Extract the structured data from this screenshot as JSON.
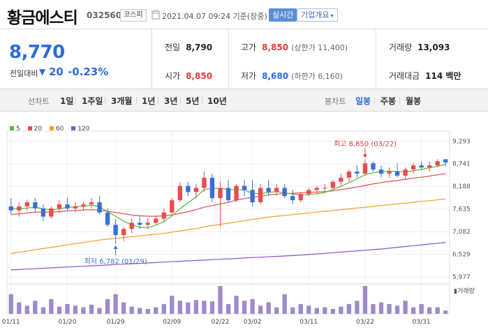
{
  "header": {
    "name": "황금에스티",
    "code": "032560",
    "market": "코스피",
    "date": "2021.04.07 09:24 기준(장중)",
    "realtime_label": "실시간",
    "company_label": "기업개요"
  },
  "price": {
    "current": "8,770",
    "change_label": "전일대비",
    "change_value": "20",
    "change_rate": "-0.23%"
  },
  "stats": {
    "prev_close_label": "전일",
    "prev_close": "8,790",
    "high_label": "고가",
    "high": "8,850",
    "upper_limit": "(상한가 11,400)",
    "volume_label": "거래량",
    "volume": "13,093",
    "open_label": "시가",
    "open": "8,850",
    "low_label": "저가",
    "low": "8,680",
    "lower_limit": "(하한가 6,160)",
    "amount_label": "거래대금",
    "amount": "114 백만"
  },
  "period": {
    "label": "선차트",
    "items": [
      "1일",
      "1주일",
      "3개월",
      "1년",
      "3년",
      "5년",
      "10년"
    ],
    "candle_label": "봉차트",
    "candle_items": [
      "일봉",
      "주봉",
      "월봉"
    ],
    "candle_active": "일봉"
  },
  "chart_data": {
    "type": "candlestick",
    "legend": [
      {
        "name": "5",
        "color": "#54b63d"
      },
      {
        "name": "20",
        "color": "#e84c4c"
      },
      {
        "name": "60",
        "color": "#f39c2a"
      },
      {
        "name": "120",
        "color": "#8c52c8"
      }
    ],
    "y_ticks": [
      5977,
      6529,
      7082,
      7635,
      8188,
      8741,
      9293
    ],
    "y_tick_labels": [
      "5,977",
      "6,529",
      "7,082",
      "7,635",
      "8,188",
      "8,741",
      "9,293"
    ],
    "ylim": [
      5860,
      9400
    ],
    "x_ticks": [
      {
        "index": 0,
        "label": "01/11"
      },
      {
        "index": 7,
        "label": "01/20"
      },
      {
        "index": 13,
        "label": "01/29"
      },
      {
        "index": 20,
        "label": "02/09"
      },
      {
        "index": 26,
        "label": "02/22"
      },
      {
        "index": 30,
        "label": "03/02"
      },
      {
        "index": 37,
        "label": "03/11"
      },
      {
        "index": 44,
        "label": "03/22"
      },
      {
        "index": 51,
        "label": "03/31"
      }
    ],
    "ohlc": [
      [
        7700,
        7900,
        7500,
        7600
      ],
      [
        7600,
        7800,
        7450,
        7700
      ],
      [
        7700,
        7850,
        7600,
        7800
      ],
      [
        7800,
        7900,
        7550,
        7650
      ],
      [
        7650,
        7750,
        7350,
        7450
      ],
      [
        7450,
        7700,
        7400,
        7650
      ],
      [
        7650,
        7850,
        7550,
        7750
      ],
      [
        7750,
        7900,
        7600,
        7650
      ],
      [
        7650,
        7800,
        7550,
        7700
      ],
      [
        7700,
        7800,
        7600,
        7750
      ],
      [
        7750,
        7900,
        7650,
        7800
      ],
      [
        7800,
        7950,
        7500,
        7550
      ],
      [
        7550,
        7650,
        7200,
        7250
      ],
      [
        7250,
        7400,
        6782,
        7000
      ],
      [
        7000,
        7200,
        6850,
        7150
      ],
      [
        7150,
        7400,
        7050,
        7300
      ],
      [
        7300,
        7450,
        7150,
        7250
      ],
      [
        7250,
        7400,
        7150,
        7300
      ],
      [
        7300,
        7450,
        7250,
        7400
      ],
      [
        7400,
        7650,
        7350,
        7550
      ],
      [
        7550,
        7900,
        7500,
        7850
      ],
      [
        7850,
        8300,
        7800,
        8200
      ],
      [
        8200,
        8300,
        7950,
        8050
      ],
      [
        8050,
        8250,
        7900,
        8150
      ],
      [
        8150,
        8550,
        8050,
        8400
      ],
      [
        8400,
        8500,
        7800,
        7900
      ],
      [
        7900,
        8300,
        7200,
        8150
      ],
      [
        8150,
        8350,
        7800,
        7850
      ],
      [
        7850,
        8250,
        7800,
        8200
      ],
      [
        8200,
        8350,
        7950,
        8100
      ],
      [
        8100,
        8350,
        7700,
        7800
      ],
      [
        7800,
        8250,
        7750,
        8150
      ],
      [
        8150,
        8350,
        7950,
        8050
      ],
      [
        8050,
        8250,
        7950,
        8150
      ],
      [
        8150,
        8250,
        7900,
        7950
      ],
      [
        7950,
        8100,
        7750,
        7850
      ],
      [
        7850,
        8050,
        7800,
        8000
      ],
      [
        8000,
        8150,
        7950,
        8100
      ],
      [
        8100,
        8200,
        8000,
        8150
      ],
      [
        8150,
        8250,
        8050,
        8150
      ],
      [
        8150,
        8350,
        8100,
        8300
      ],
      [
        8300,
        8500,
        8200,
        8400
      ],
      [
        8400,
        8600,
        8300,
        8550
      ],
      [
        8550,
        8700,
        8400,
        8500
      ],
      [
        8500,
        8850,
        8450,
        8750
      ],
      [
        8750,
        8800,
        8550,
        8600
      ],
      [
        8600,
        8700,
        8400,
        8500
      ],
      [
        8500,
        8650,
        8400,
        8550
      ],
      [
        8550,
        8750,
        8400,
        8450
      ],
      [
        8450,
        8650,
        8350,
        8600
      ],
      [
        8600,
        8750,
        8500,
        8700
      ],
      [
        8700,
        8800,
        8600,
        8650
      ],
      [
        8650,
        8800,
        8550,
        8700
      ],
      [
        8700,
        8850,
        8650,
        8800
      ],
      [
        8850,
        8850,
        8680,
        8770
      ]
    ],
    "ma5": [
      7650,
      7640,
      7660,
      7680,
      7640,
      7610,
      7640,
      7680,
      7690,
      7700,
      7730,
      7690,
      7570,
      7460,
      7340,
      7250,
      7190,
      7180,
      7240,
      7330,
      7470,
      7640,
      7790,
      7930,
      8110,
      8140,
      8140,
      8110,
      8110,
      8100,
      8020,
      8010,
      8040,
      8060,
      8030,
      8000,
      7980,
      7990,
      8010,
      8040,
      8110,
      8190,
      8280,
      8370,
      8470,
      8520,
      8540,
      8560,
      8550,
      8540,
      8570,
      8600,
      8640,
      8680,
      8730
    ],
    "ma20": [
      7500,
      7520,
      7540,
      7560,
      7560,
      7560,
      7570,
      7590,
      7600,
      7610,
      7620,
      7610,
      7580,
      7550,
      7520,
      7490,
      7470,
      7460,
      7460,
      7470,
      7490,
      7530,
      7570,
      7620,
      7680,
      7720,
      7760,
      7800,
      7850,
      7890,
      7920,
      7950,
      7980,
      8000,
      8010,
      8020,
      8030,
      8040,
      8050,
      8060,
      8080,
      8110,
      8140,
      8170,
      8210,
      8250,
      8280,
      8310,
      8330,
      8360,
      8390,
      8410,
      8440,
      8470,
      8500
    ],
    "ma60": [
      6550,
      6580,
      6610,
      6640,
      6670,
      6700,
      6730,
      6760,
      6790,
      6820,
      6850,
      6880,
      6900,
      6920,
      6940,
      6960,
      6980,
      7000,
      7020,
      7040,
      7070,
      7100,
      7130,
      7160,
      7200,
      7230,
      7260,
      7290,
      7320,
      7350,
      7380,
      7410,
      7440,
      7460,
      7480,
      7500,
      7520,
      7540,
      7560,
      7580,
      7600,
      7620,
      7640,
      7660,
      7680,
      7700,
      7720,
      7740,
      7760,
      7780,
      7800,
      7820,
      7840,
      7860,
      7880
    ],
    "ma120": [
      6150,
      6160,
      6170,
      6180,
      6190,
      6200,
      6210,
      6220,
      6230,
      6240,
      6250,
      6260,
      6270,
      6280,
      6290,
      6300,
      6310,
      6320,
      6330,
      6340,
      6350,
      6360,
      6370,
      6380,
      6390,
      6400,
      6410,
      6420,
      6430,
      6440,
      6450,
      6460,
      6470,
      6480,
      6490,
      6500,
      6510,
      6525,
      6540,
      6555,
      6570,
      6585,
      6600,
      6615,
      6630,
      6645,
      6660,
      6680,
      6700,
      6720,
      6740,
      6760,
      6780,
      6800,
      6820
    ],
    "volume": [
      60,
      35,
      25,
      40,
      20,
      45,
      22,
      30,
      25,
      20,
      28,
      18,
      45,
      60,
      35,
      22,
      18,
      15,
      20,
      30,
      55,
      40,
      35,
      42,
      40,
      38,
      85,
      30,
      55,
      40,
      45,
      25,
      35,
      20,
      60,
      20,
      30,
      25,
      18,
      20,
      15,
      22,
      30,
      40,
      85,
      30,
      35,
      30,
      25,
      40,
      20,
      30,
      20,
      20,
      10
    ],
    "annotations": {
      "high_label": "최고 8,850 (03/22)",
      "high_index": 44,
      "high_value": 8850,
      "low_label": "최저 6,782 (01/29)",
      "low_index": 13,
      "low_value": 6782
    },
    "volume_label": "거래량"
  },
  "colors": {
    "up": "#e84c4c",
    "down": "#3c6fd6",
    "volume": "#9f8ac9",
    "accent": "#2e6bd8"
  }
}
